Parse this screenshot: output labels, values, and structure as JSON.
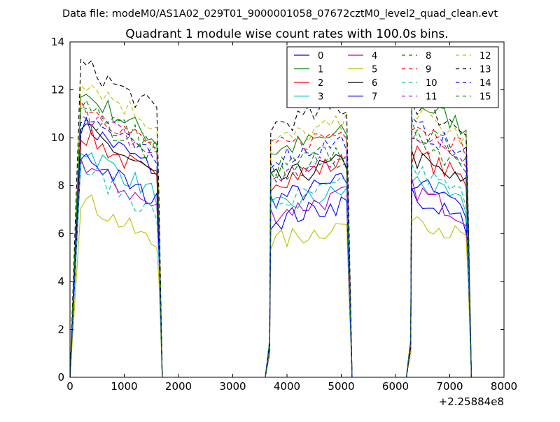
{
  "suptitle": "Data file: modeM0/AS1A02_029T01_9000001058_07672cztM0_level2_quad_clean.evt",
  "chart_data": {
    "type": "line",
    "title": "Quadrant 1 module wise count rates with 100.0s bins.",
    "xlabel": "",
    "ylabel": "",
    "x_offset_label": "+2.25884e8",
    "xlim": [
      0,
      8000
    ],
    "ylim": [
      0,
      14
    ],
    "xticks": [
      0,
      1000,
      2000,
      3000,
      4000,
      5000,
      6000,
      7000,
      8000
    ],
    "yticks": [
      0,
      2,
      4,
      6,
      8,
      10,
      12,
      14
    ],
    "grid": false,
    "legend_position": "top-right",
    "legend_columns": 4,
    "segments": [
      {
        "x_start": 200,
        "x_end": 1700,
        "step": 100
      },
      {
        "x_start": 3700,
        "x_end": 5200,
        "step": 100
      },
      {
        "x_start": 6300,
        "x_end": 7400,
        "step": 100
      }
    ],
    "series": [
      {
        "name": "0",
        "color": "#0000ff",
        "dash": "solid",
        "levels": [
          9.6,
          7.8,
          7.0
        ]
      },
      {
        "name": "1",
        "color": "#008000",
        "dash": "solid",
        "levels": [
          10.9,
          9.8,
          11.0
        ]
      },
      {
        "name": "2",
        "color": "#ff0000",
        "dash": "solid",
        "levels": [
          9.2,
          8.6,
          8.8
        ]
      },
      {
        "name": "3",
        "color": "#00bfbf",
        "dash": "solid",
        "levels": [
          8.6,
          7.4,
          7.7
        ]
      },
      {
        "name": "4",
        "color": "#bf00bf",
        "dash": "solid",
        "levels": [
          8.0,
          7.2,
          7.3
        ]
      },
      {
        "name": "5",
        "color": "#bfbf00",
        "dash": "solid",
        "levels": [
          6.5,
          6.0,
          6.3
        ]
      },
      {
        "name": "6",
        "color": "#000000",
        "dash": "solid",
        "levels": [
          9.4,
          8.6,
          8.6
        ]
      },
      {
        "name": "7",
        "color": "#0000ff",
        "dash": "solid",
        "levels": [
          8.3,
          6.9,
          7.6
        ]
      },
      {
        "name": "8",
        "color": "#008000",
        "dash": "dashed",
        "levels": [
          10.6,
          9.1,
          9.8
        ]
      },
      {
        "name": "9",
        "color": "#ff0000",
        "dash": "dashed",
        "levels": [
          10.5,
          9.9,
          10.1
        ]
      },
      {
        "name": "10",
        "color": "#00bfbf",
        "dash": "dashed",
        "levels": [
          7.8,
          7.6,
          8.1
        ]
      },
      {
        "name": "11",
        "color": "#bf00bf",
        "dash": "dashed",
        "levels": [
          10.2,
          8.7,
          9.7
        ]
      },
      {
        "name": "12",
        "color": "#bfbf00",
        "dash": "dashed",
        "levels": [
          11.5,
          10.2,
          10.5
        ]
      },
      {
        "name": "13",
        "color": "#000000",
        "dash": "dashed",
        "levels": [
          12.1,
          10.9,
          10.9
        ]
      },
      {
        "name": "14",
        "color": "#0000ff",
        "dash": "dashed",
        "levels": [
          10.0,
          9.5,
          9.9
        ]
      },
      {
        "name": "15",
        "color": "#008000",
        "dash": "dashed",
        "levels": [
          10.1,
          8.8,
          9.4
        ]
      }
    ]
  }
}
